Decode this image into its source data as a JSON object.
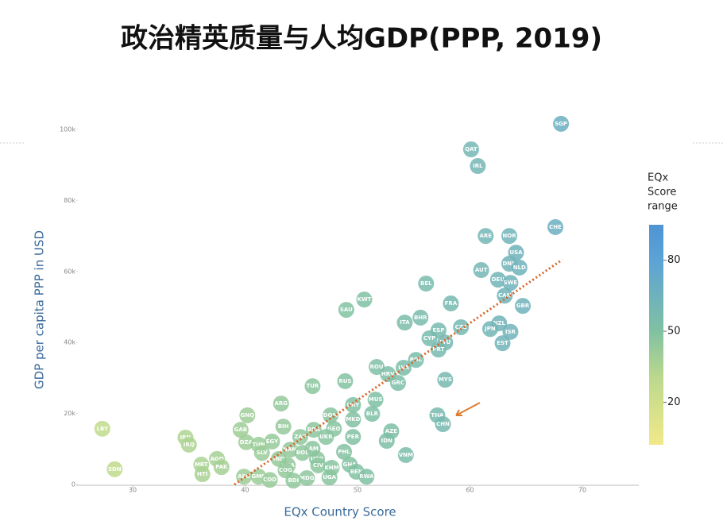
{
  "chart_data": {
    "type": "scatter",
    "title": "政治精英质量与人均GDP(PPP, 2019)",
    "x_label": "EQx Country Score",
    "y_label": "GDP per capita PPP in USD",
    "xlim": [
      25,
      75
    ],
    "xticks": [
      30,
      40,
      50,
      60,
      70
    ],
    "ylim": [
      0,
      103000
    ],
    "yticks": [
      {
        "value": 0,
        "label": "0"
      },
      {
        "value": 20000,
        "label": "20k"
      },
      {
        "value": 40000,
        "label": "40k"
      },
      {
        "value": 60000,
        "label": "60k"
      },
      {
        "value": 80000,
        "label": "80k"
      },
      {
        "value": 100000,
        "label": "100k"
      }
    ],
    "labels": [
      "SGP",
      "QAT",
      "IRL",
      "CHE",
      "ARE",
      "NOR",
      "USA",
      "DNK",
      "NLD",
      "AUT",
      "DEU",
      "SWE",
      "BEL",
      "CAN",
      "GBR",
      "FRA",
      "KWT",
      "SAU",
      "BHR",
      "ITA",
      "NZL",
      "JPN",
      "ESP",
      "CZE",
      "ISR",
      "CYP",
      "LTU",
      "EST",
      "PRT",
      "POL",
      "ROU",
      "HRV",
      "LVA",
      "GRC",
      "TUR",
      "RUS",
      "MYS",
      "MUS",
      "ARG",
      "URY",
      "BLR",
      "GNQ",
      "MKD",
      "DOM",
      "THA",
      "CHN",
      "BIH",
      "GAB",
      "GEO",
      "BRA",
      "LBY",
      "AZE",
      "ZAF",
      "UKR",
      "PER",
      "IRN",
      "DZA",
      "EGY",
      "IDN",
      "TUN",
      "IRQ",
      "NAM",
      "JAM",
      "PHL",
      "SLV",
      "BOL",
      "VNM",
      "AGO",
      "IND",
      "UZB",
      "NGA",
      "CIV",
      "GHA",
      "MRT",
      "PAK",
      "KHM",
      "SDN",
      "COG",
      "GMB",
      "AFG",
      "COD",
      "MDG",
      "BEN",
      "UGA",
      "RWA",
      "HTI",
      "BDI"
    ],
    "x": [
      68.1,
      60.1,
      60.7,
      67.6,
      61.4,
      63.5,
      64.1,
      63.5,
      64.4,
      61.0,
      62.5,
      63.6,
      56.1,
      63.1,
      64.7,
      58.3,
      50.6,
      49.0,
      55.6,
      54.2,
      62.6,
      61.8,
      57.2,
      59.2,
      63.6,
      56.4,
      57.8,
      62.9,
      57.2,
      55.2,
      51.7,
      52.7,
      54.1,
      53.6,
      46.0,
      48.9,
      57.8,
      51.6,
      43.2,
      49.6,
      51.3,
      40.2,
      49.6,
      47.6,
      57.1,
      57.6,
      43.4,
      39.6,
      47.9,
      46.1,
      27.3,
      53.0,
      44.9,
      47.2,
      49.6,
      34.7,
      40.1,
      42.4,
      52.6,
      41.2,
      35.0,
      44.0,
      46.0,
      48.8,
      41.5,
      45.1,
      54.3,
      37.5,
      43.0,
      46.4,
      43.8,
      46.5,
      49.3,
      36.1,
      37.9,
      47.7,
      28.4,
      43.6,
      41.2,
      39.9,
      42.2,
      45.5,
      49.9,
      47.5,
      50.8,
      36.2,
      44.3
    ],
    "y": [
      101600,
      94400,
      89700,
      72500,
      70000,
      70000,
      65300,
      62200,
      61100,
      60400,
      57700,
      56800,
      56600,
      53200,
      50300,
      51000,
      52100,
      49200,
      47000,
      45600,
      45400,
      43800,
      43400,
      44300,
      43000,
      41200,
      40000,
      39800,
      38000,
      35100,
      33100,
      31100,
      32900,
      28600,
      27700,
      29100,
      29500,
      23900,
      22800,
      22400,
      19900,
      19500,
      18300,
      19500,
      19500,
      17000,
      16300,
      15400,
      15700,
      15400,
      15700,
      15000,
      13400,
      13400,
      13400,
      13200,
      11900,
      12100,
      12300,
      11200,
      11200,
      9800,
      10100,
      9200,
      8900,
      8900,
      8300,
      7200,
      7200,
      7200,
      5400,
      5400,
      5600,
      5600,
      4900,
      4700,
      4300,
      4000,
      2200,
      2200,
      1300,
      1800,
      3600,
      2000,
      2200,
      2900,
      1100
    ],
    "trendline": {
      "x": [
        39.05,
        68.2
      ],
      "y": [
        0,
        63300
      ],
      "color": "#d9662a"
    },
    "colorbar": {
      "title": [
        "EQx",
        "Score",
        "range"
      ],
      "lim": [
        2,
        95
      ],
      "ticks": [
        20,
        50,
        80
      ],
      "colorscale": [
        [
          2,
          "#f2e98a"
        ],
        [
          30,
          "#bcd98c"
        ],
        [
          50,
          "#80c1a2"
        ],
        [
          80,
          "#5ca3d6"
        ],
        [
          95,
          "#4e94d4"
        ]
      ]
    }
  }
}
